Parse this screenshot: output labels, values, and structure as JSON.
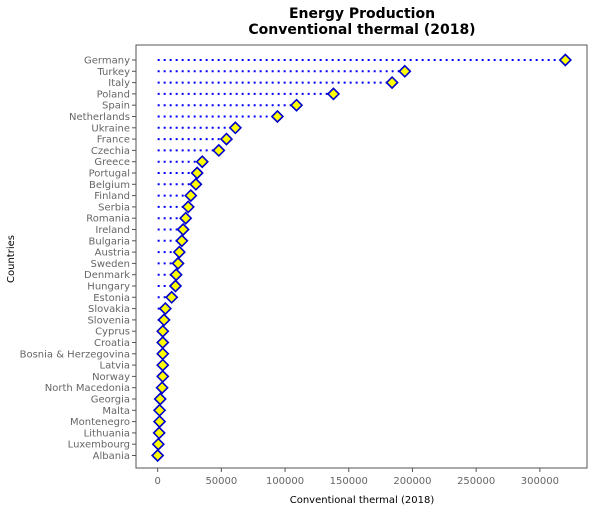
{
  "chart_data": {
    "type": "scatter",
    "marker": "diamond",
    "connector": "dotted-line-from-zero",
    "title": [
      "Energy Production",
      "Conventional thermal (2018)"
    ],
    "xlabel": "Conventional thermal (2018)",
    "ylabel": "Countries",
    "xlim": [
      -17000,
      337000
    ],
    "xticks": [
      0,
      50000,
      100000,
      150000,
      200000,
      250000,
      300000
    ],
    "xtick_labels": [
      "0",
      "50000",
      "100000",
      "150000",
      "200000",
      "250000",
      "300000"
    ],
    "grid": false,
    "colors": {
      "marker_fill": "#ffff00",
      "marker_edge": "#0000cd",
      "connector": "#0000ff",
      "tick_text": "#666666",
      "spine": "#555555"
    },
    "categories": [
      "Germany",
      "Turkey",
      "Italy",
      "Poland",
      "Spain",
      "Netherlands",
      "Ukraine",
      "France",
      "Czechia",
      "Greece",
      "Portugal",
      "Belgium",
      "Finland",
      "Serbia",
      "Romania",
      "Ireland",
      "Bulgaria",
      "Austria",
      "Sweden",
      "Denmark",
      "Hungary",
      "Estonia",
      "Slovakia",
      "Slovenia",
      "Cyprus",
      "Croatia",
      "Bosnia & Herzegovina",
      "Latvia",
      "Norway",
      "North Macedonia",
      "Georgia",
      "Malta",
      "Montenegro",
      "Lithuania",
      "Luxembourg",
      "Albania"
    ],
    "values": [
      320000,
      194000,
      184000,
      138000,
      109000,
      94000,
      61000,
      54000,
      48000,
      35000,
      31000,
      30000,
      26000,
      24000,
      22000,
      20000,
      19000,
      17000,
      16000,
      14500,
      14000,
      11000,
      6000,
      5000,
      4000,
      4000,
      4000,
      4000,
      4000,
      3500,
      2000,
      1500,
      1500,
      1200,
      500,
      0
    ]
  }
}
